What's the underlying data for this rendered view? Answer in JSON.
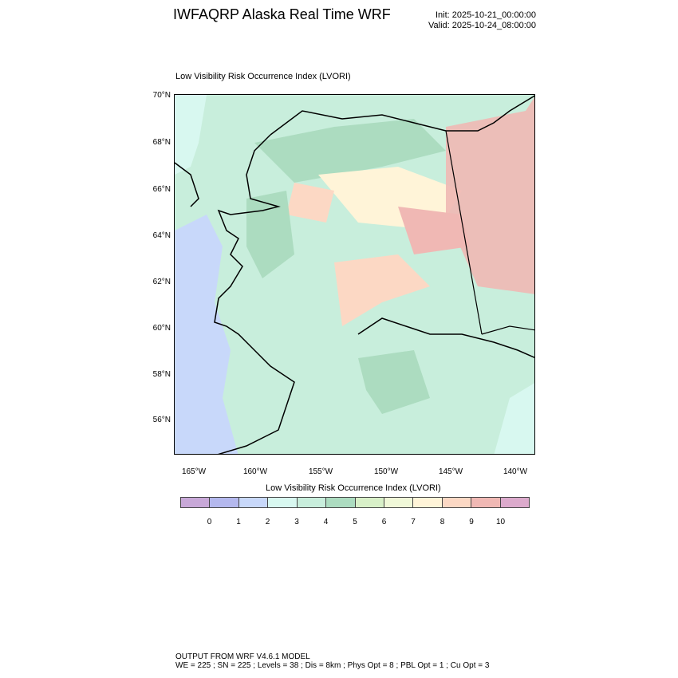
{
  "header": {
    "title": "IWFAQRP Alaska Real Time WRF",
    "init": "Init: 2025-10-21_00:00:00",
    "valid": "Valid: 2025-10-24_08:00:00"
  },
  "map": {
    "subtitle": "Low Visibility Risk Occurrence Index   (LVORI)",
    "lat_labels": [
      "70°N",
      "68°N",
      "66°N",
      "64°N",
      "62°N",
      "60°N",
      "58°N",
      "56°N"
    ],
    "lon_labels": [
      "165°W",
      "160°W",
      "155°W",
      "150°W",
      "145°W",
      "140°W"
    ]
  },
  "colorbar": {
    "title": "Low Visibility Risk Occurrence Index  (LVORI)",
    "labels": [
      "0",
      "1",
      "2",
      "3",
      "4",
      "5",
      "6",
      "7",
      "8",
      "9",
      "10"
    ],
    "colors": [
      "#c8a8d8",
      "#b4b8ee",
      "#c8d8fa",
      "#d8f8f0",
      "#c8eedc",
      "#acdcc0",
      "#d8f0c8",
      "#f0f8d8",
      "#fff4d8",
      "#fcd8c4",
      "#f0b8b4",
      "#dcaacc"
    ]
  },
  "footer": {
    "line1": "OUTPUT FROM WRF V4.6.1 MODEL",
    "line2": "WE = 225 ; SN = 225 ; Levels = 38 ; Dis = 8km ; Phys Opt = 8 ; PBL Opt = 1 ; Cu Opt = 3"
  }
}
